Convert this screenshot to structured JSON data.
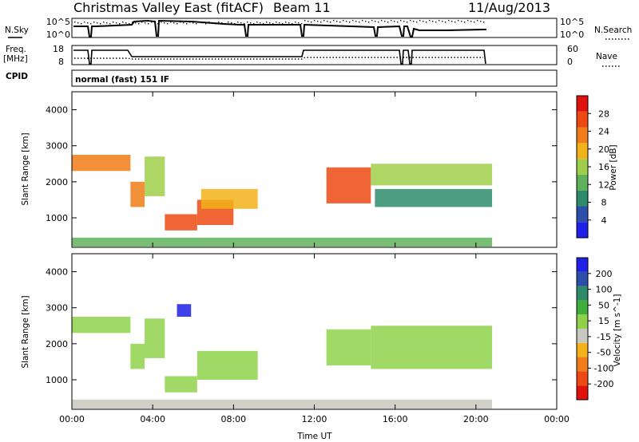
{
  "header": {
    "station": "Christmas Valley East (fitACF)",
    "beam": "Beam 11",
    "date": "11/Aug/2013",
    "cpid_label": "CPID",
    "cpid_value": "normal (fast) 151 IF"
  },
  "strip_labels": {
    "nsky": "N.Sky",
    "freq_line1": "Freq.",
    "freq_line2": "[MHz]",
    "nsearch": "N.Search",
    "nave": "Nave"
  },
  "strip_ticks": {
    "nsky": [
      "10^5",
      "10^0"
    ],
    "freq": [
      "18",
      "8"
    ],
    "nsearch": [
      "10^5",
      "10^0"
    ],
    "nave": [
      "60",
      "0"
    ]
  },
  "colors": {
    "power_scale": [
      "#1f1fe6",
      "#2d4faa",
      "#2e8c6c",
      "#5fb15b",
      "#9fcf4a",
      "#f2b21a",
      "#f07d18",
      "#ec4a12",
      "#e0120c"
    ],
    "velocity_scale": [
      "#e0120c",
      "#ec4a12",
      "#f07d18",
      "#f2b21a",
      "#c8c8c0",
      "#8fd24a",
      "#3fae3c",
      "#2e8c6c",
      "#2d4faa",
      "#1f1fe6"
    ]
  },
  "chart_data": [
    {
      "type": "heatmap",
      "name": "power",
      "xlabel": "",
      "ylabel": "Slant Range [km]",
      "x_ticks": [
        "00:00",
        "04:00",
        "08:00",
        "12:00",
        "16:00",
        "20:00",
        "00:00"
      ],
      "y_ticks": [
        "1000",
        "2000",
        "3000",
        "4000"
      ],
      "xlim_hours": [
        0,
        24
      ],
      "ylim_km": [
        180,
        4500
      ],
      "colorbar": {
        "label": "Power [dB]",
        "range": [
          0,
          30
        ],
        "ticks": [
          "4",
          "8",
          "12",
          "16",
          "20",
          "24",
          "28"
        ]
      },
      "echo_bands": [
        {
          "t0": 0.0,
          "t1": 2.9,
          "r0": 2300,
          "r1": 2750,
          "value": 20
        },
        {
          "t0": 2.9,
          "t1": 3.6,
          "r0": 1300,
          "r1": 2000,
          "value": 22
        },
        {
          "t0": 3.6,
          "t1": 4.6,
          "r0": 1600,
          "r1": 2700,
          "value": 14
        },
        {
          "t0": 4.6,
          "t1": 6.2,
          "r0": 650,
          "r1": 1100,
          "value": 26
        },
        {
          "t0": 6.2,
          "t1": 8.0,
          "r0": 800,
          "r1": 1500,
          "value": 25
        },
        {
          "t0": 6.4,
          "t1": 9.2,
          "r0": 1250,
          "r1": 1800,
          "value": 18
        },
        {
          "t0": 12.6,
          "t1": 14.8,
          "r0": 1400,
          "r1": 2400,
          "value": 24
        },
        {
          "t0": 14.8,
          "t1": 20.8,
          "r0": 1900,
          "r1": 2500,
          "value": 16
        },
        {
          "t0": 15.0,
          "t1": 20.8,
          "r0": 1300,
          "r1": 1800,
          "value": 8
        },
        {
          "t0": 0.0,
          "t1": 20.8,
          "r0": 200,
          "r1": 450,
          "value": 10
        }
      ]
    },
    {
      "type": "heatmap",
      "name": "velocity",
      "xlabel": "Time UT",
      "ylabel": "Slant Range [km]",
      "x_ticks": [
        "00:00",
        "04:00",
        "08:00",
        "12:00",
        "16:00",
        "20:00",
        "00:00"
      ],
      "y_ticks": [
        "1000",
        "2000",
        "3000",
        "4000"
      ],
      "xlim_hours": [
        0,
        24
      ],
      "ylim_km": [
        180,
        4500
      ],
      "colorbar": {
        "label": "Velocity [m s^-1]",
        "range": [
          -250,
          250
        ],
        "ticks": [
          "-200",
          "-100",
          "-50",
          "-15",
          "15",
          "50",
          "100",
          "200"
        ]
      },
      "echo_bands": [
        {
          "t0": 0.0,
          "t1": 2.9,
          "r0": 2300,
          "r1": 2750,
          "value": 0
        },
        {
          "t0": 2.9,
          "t1": 3.6,
          "r0": 1300,
          "r1": 2000,
          "value": 0
        },
        {
          "t0": 3.6,
          "t1": 4.6,
          "r0": 1600,
          "r1": 2700,
          "value": 30
        },
        {
          "t0": 4.6,
          "t1": 6.2,
          "r0": 650,
          "r1": 1100,
          "value": 40
        },
        {
          "t0": 6.2,
          "t1": 9.2,
          "r0": 1000,
          "r1": 1800,
          "value": 40
        },
        {
          "t0": 5.2,
          "t1": 5.9,
          "r0": 2750,
          "r1": 3100,
          "value": 220
        },
        {
          "t0": 12.6,
          "t1": 14.8,
          "r0": 1400,
          "r1": 2400,
          "value": 0
        },
        {
          "t0": 14.8,
          "t1": 20.8,
          "r0": 1300,
          "r1": 2500,
          "value": 0
        },
        {
          "t0": 0.0,
          "t1": 20.8,
          "r0": 200,
          "r1": 450,
          "value": -30
        }
      ]
    }
  ]
}
